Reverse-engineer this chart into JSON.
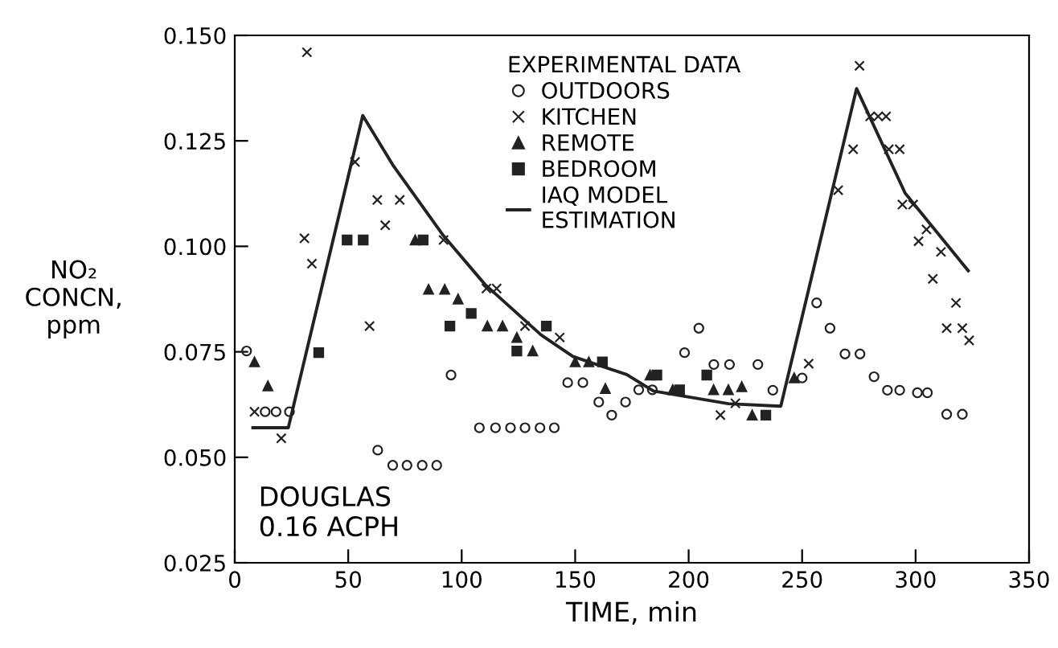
{
  "chart_data": {
    "type": "scatter",
    "xlabel": "TIME, min",
    "ylabel": "NO₂\nCONCN,\nppm",
    "legend_title": "EXPERIMENTAL DATA",
    "annotations": [
      "DOUGLAS\n0.16 ACPH"
    ],
    "xlim": [
      0,
      350
    ],
    "xticks": [
      0,
      50,
      100,
      150,
      200,
      250,
      300,
      350
    ],
    "ylim": [
      0.025,
      0.15
    ],
    "yticks": [
      {
        "value": 0.025,
        "label": "0.025"
      },
      {
        "value": 0.05,
        "label": "0.050"
      },
      {
        "value": 0.075,
        "label": "0.075"
      },
      {
        "value": 0.1,
        "label": "0.100"
      },
      {
        "value": 0.125,
        "label": "0.125"
      },
      {
        "value": 0.15,
        "label": "0.150"
      }
    ],
    "grid": false,
    "legend": "top",
    "series": [
      {
        "name": "OUTDOORS",
        "marker": "circle",
        "color": "#222222",
        "x": [
          5.2,
          13.4,
          18.2,
          24.1,
          63,
          69.6,
          75.9,
          82.6,
          89,
          95.3,
          107.8,
          114.9,
          121.5,
          127.9,
          134.5,
          140.8,
          146.7,
          153.4,
          160.4,
          166.1,
          172.2,
          178,
          184,
          198.2,
          204.5,
          211.1,
          218,
          230.5,
          237.1,
          250,
          256.4,
          262.3,
          268.9,
          275.5,
          281.7,
          287.6,
          293,
          300.8,
          305.2,
          313.7,
          320.6
        ],
        "values": [
          0.0752,
          0.0608,
          0.0608,
          0.0608,
          0.0517,
          0.0481,
          0.0481,
          0.0481,
          0.0481,
          0.0695,
          0.057,
          0.057,
          0.057,
          0.057,
          0.057,
          0.057,
          0.0677,
          0.0677,
          0.0631,
          0.06,
          0.0631,
          0.066,
          0.066,
          0.0748,
          0.0806,
          0.072,
          0.072,
          0.072,
          0.0659,
          0.0688,
          0.0866,
          0.0806,
          0.0745,
          0.0745,
          0.0691,
          0.0659,
          0.0659,
          0.0653,
          0.0653,
          0.0602,
          0.0602
        ]
      },
      {
        "name": "KITCHEN",
        "marker": "cross",
        "color": "#222222",
        "x": [
          8.7,
          20.5,
          30.7,
          31.8,
          34,
          53,
          59.4,
          62.8,
          66.3,
          72.7,
          92,
          110.9,
          115.4,
          127.9,
          143.2,
          214,
          220.6,
          252.9,
          265.9,
          272.5,
          275.3,
          280,
          283.5,
          287,
          288.2,
          293,
          294.2,
          298.9,
          301.3,
          304.8,
          307.6,
          311.2,
          313.7,
          317.8,
          320.6,
          323.6
        ],
        "values": [
          0.0608,
          0.0545,
          0.1019,
          0.146,
          0.0959,
          0.12,
          0.0811,
          0.111,
          0.105,
          0.111,
          0.1015,
          0.09,
          0.09,
          0.0811,
          0.0784,
          0.06,
          0.0628,
          0.0722,
          0.1133,
          0.123,
          0.1428,
          0.1308,
          0.1308,
          0.1308,
          0.123,
          0.123,
          0.1099,
          0.1099,
          0.1012,
          0.104,
          0.0923,
          0.0987,
          0.0806,
          0.0866,
          0.0806,
          0.0777
        ]
      },
      {
        "name": "REMOTE",
        "marker": "triangle",
        "color": "#222222",
        "x": [
          8.7,
          14.6,
          79.5,
          85.4,
          92.5,
          98.4,
          111.3,
          118,
          124.3,
          131.3,
          150,
          156,
          163.3,
          183,
          193,
          211,
          217.5,
          223.4,
          228,
          246.5
        ],
        "values": [
          0.0726,
          0.0669,
          0.1015,
          0.0898,
          0.0898,
          0.0875,
          0.0811,
          0.0811,
          0.0784,
          0.0752,
          0.0726,
          0.0726,
          0.0663,
          0.0695,
          0.066,
          0.066,
          0.066,
          0.0667,
          0.06,
          0.0688
        ]
      },
      {
        "name": "BEDROOM",
        "marker": "square",
        "color": "#222222",
        "x": [
          37,
          49.5,
          56.6,
          83,
          94.8,
          104.2,
          124.3,
          137.3,
          162,
          186,
          196,
          208,
          234
        ],
        "values": [
          0.0748,
          0.1015,
          0.1015,
          0.1015,
          0.0811,
          0.0841,
          0.0752,
          0.0811,
          0.0726,
          0.0695,
          0.066,
          0.0695,
          0.06
        ]
      },
      {
        "name": "IAQ MODEL\nESTIMATION",
        "type": "line",
        "marker": "none",
        "line_style": "solid",
        "color": "#222222",
        "x": [
          8,
          23.6,
          56.4,
          70,
          92,
          110.2,
          135,
          149,
          172.7,
          184.5,
          217.5,
          240.6,
          274,
          295.4,
          323.2
        ],
        "values": [
          0.057,
          0.057,
          0.131,
          0.119,
          0.1025,
          0.091,
          0.079,
          0.0739,
          0.0696,
          0.0657,
          0.0627,
          0.0621,
          0.1374,
          0.1126,
          0.0942
        ]
      }
    ]
  }
}
